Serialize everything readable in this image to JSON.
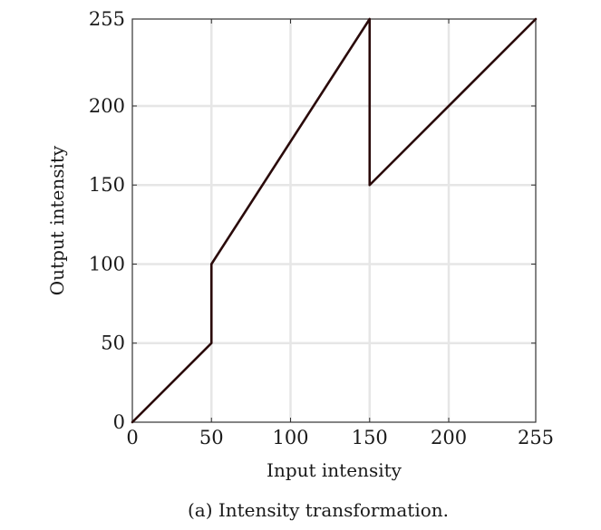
{
  "chart_data": {
    "type": "line",
    "title": "",
    "xlabel": "Input intensity",
    "ylabel": "Output intensity",
    "xlim": [
      0,
      255
    ],
    "ylim": [
      0,
      255
    ],
    "xticks": [
      0,
      50,
      100,
      150,
      200,
      255
    ],
    "yticks": [
      0,
      50,
      100,
      150,
      200,
      255
    ],
    "grid": true,
    "series": [
      {
        "x": [
          0,
          50,
          50,
          150,
          150,
          255
        ],
        "y": [
          0,
          50,
          100,
          255,
          150,
          255
        ],
        "color": "#2a0a0a"
      }
    ],
    "caption": "(a) Intensity transformation."
  }
}
